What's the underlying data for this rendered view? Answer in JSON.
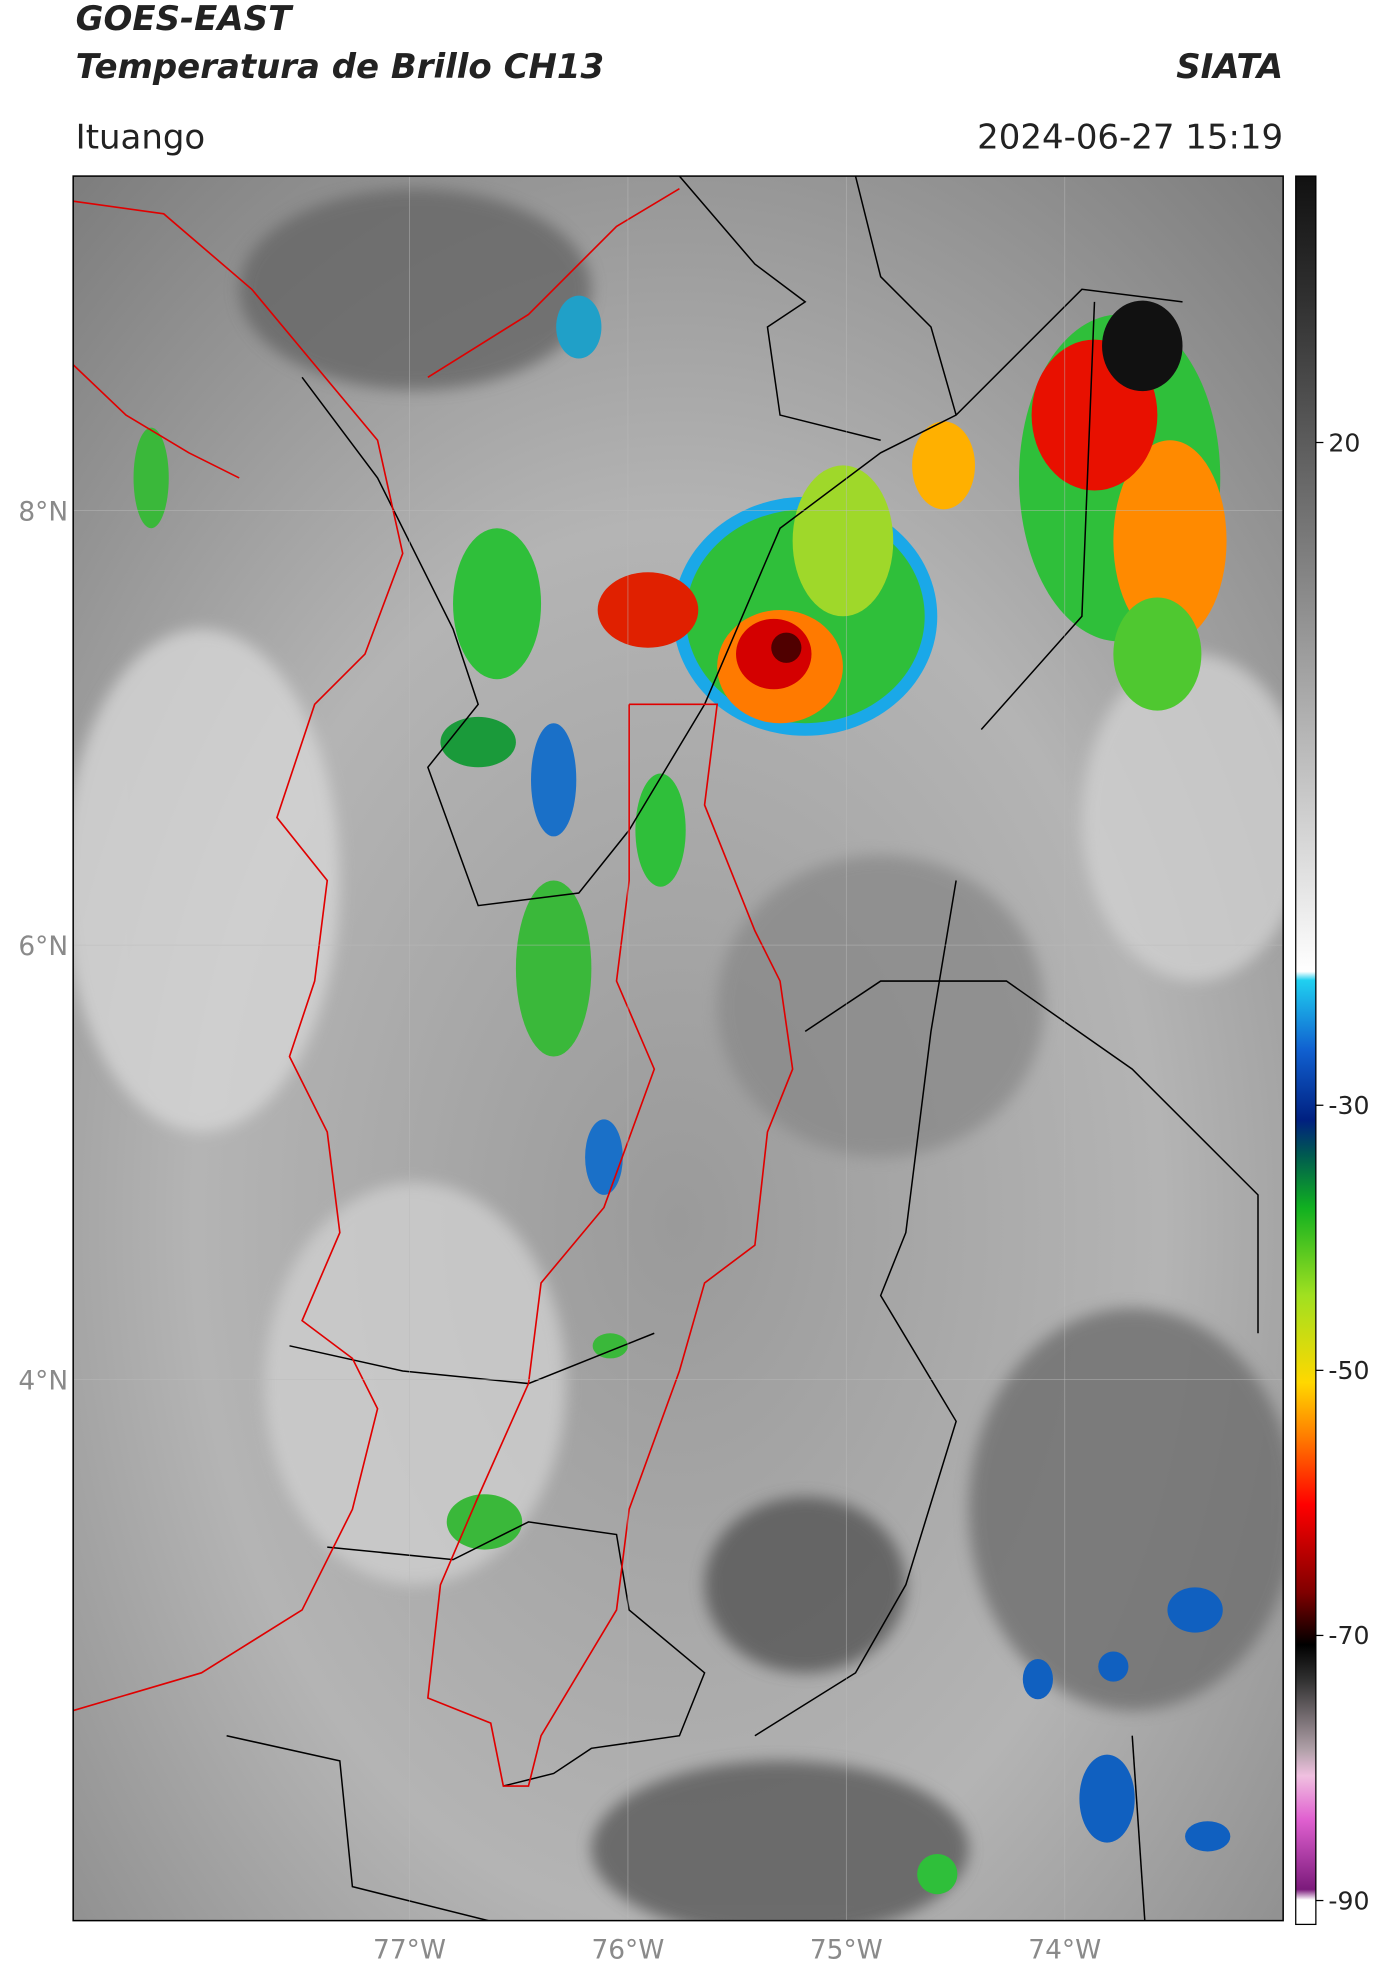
{
  "header": {
    "title": "GOES-EAST",
    "subtitle": "Temperatura de Brillo CH13",
    "agency": "SIATA",
    "location": "Ituango",
    "datetime": "2024-06-27 15:19"
  },
  "map": {
    "lon_range": [
      -78.54,
      -73.0
    ],
    "lat_range": [
      1.51,
      9.54
    ],
    "lat_ticks": [
      {
        "value": 8,
        "label": "8°N"
      },
      {
        "value": 6,
        "label": "6°N"
      },
      {
        "value": 4,
        "label": "4°N"
      }
    ],
    "lon_ticks": [
      {
        "value": -77,
        "label": "77°W"
      },
      {
        "value": -76,
        "label": "76°W"
      },
      {
        "value": -75,
        "label": "75°W"
      },
      {
        "value": -74,
        "label": "74°W"
      }
    ]
  },
  "colorbar": {
    "range": [
      -91.8,
      40.1
    ],
    "ticks": [
      20,
      -30,
      -50,
      -70,
      -90
    ]
  }
}
